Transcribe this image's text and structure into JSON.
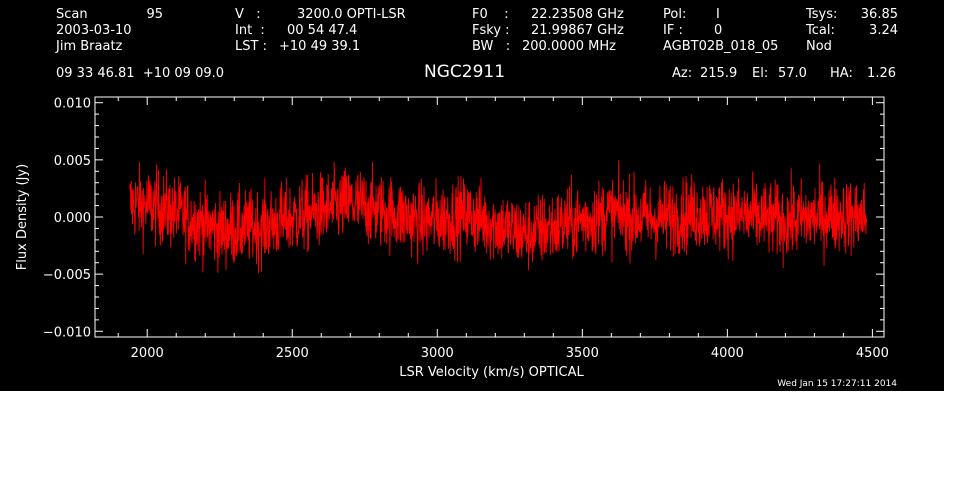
{
  "header": {
    "scan_label": "Scan",
    "scan_value": "95",
    "date": "2003-03-10",
    "observer": "Jim Braatz",
    "v_label": "V   :",
    "v_value": "3200.0 OPTI-LSR",
    "int_label": "Int  :",
    "int_value": "00 54 47.4",
    "lst_label": "LST :",
    "lst_value": "+10 49 39.1",
    "f0_label": "F0    :",
    "f0_value": "22.23508 GHz",
    "fsky_label": "Fsky :",
    "fsky_value": "21.99867 GHz",
    "bw_label": "BW   :",
    "bw_value": "200.0000 MHz",
    "pol_label": "Pol:",
    "pol_value": "I",
    "if_label": "IF :",
    "if_value": "0",
    "project": "AGBT02B_018_05",
    "tsys_label": "Tsys:",
    "tsys_value": "36.85",
    "tcal_label": "Tcal:",
    "tcal_value": "3.24",
    "mode": "Nod",
    "coords": "09 33 46.81  +10 09 09.0",
    "source": "NGC2911",
    "az_label": "Az:",
    "az_value": "215.9",
    "el_label": "El:",
    "el_value": "57.0",
    "ha_label": "HA:",
    "ha_value": "1.26"
  },
  "timestamp": "Wed Jan 15 17:27:11 2014",
  "colors": {
    "background": "#000000",
    "foreground": "#ffffff",
    "series": "#ff0000"
  },
  "chart_data": {
    "type": "line",
    "xlabel": "LSR Velocity (km/s) OPTICAL",
    "ylabel": "Flux Density (Jy)",
    "xlim": [
      1820,
      4540
    ],
    "ylim": [
      -0.0105,
      0.0105
    ],
    "xticks": [
      2000,
      2500,
      3000,
      3500,
      4000,
      4500
    ],
    "xtick_labels": [
      "2000",
      "2500",
      "3000",
      "3500",
      "4000",
      "4500"
    ],
    "yticks": [
      -0.01,
      -0.005,
      0.0,
      0.005,
      0.01
    ],
    "ytick_labels": [
      "−0.010",
      "−0.005",
      "0.000",
      "0.005",
      "0.010"
    ],
    "grid": false,
    "legend": "none",
    "series": [
      {
        "x_range": [
          1940,
          4480
        ],
        "noise_rms_jy": 0.0022,
        "baseline_x": [
          1940,
          2050,
          2250,
          2400,
          2550,
          2700,
          2800,
          2950,
          3100,
          3300,
          3450,
          3600,
          3750,
          3900,
          4050,
          4200,
          4350,
          4480
        ],
        "baseline_jy": [
          0.0012,
          0.0008,
          -0.0012,
          -0.0008,
          0.0002,
          0.0012,
          0.0006,
          -0.0004,
          0.0002,
          -0.0015,
          -0.0006,
          0.0003,
          -0.0002,
          0.0004,
          0.0001,
          -0.0004,
          0.0002,
          0.0
        ]
      }
    ]
  }
}
